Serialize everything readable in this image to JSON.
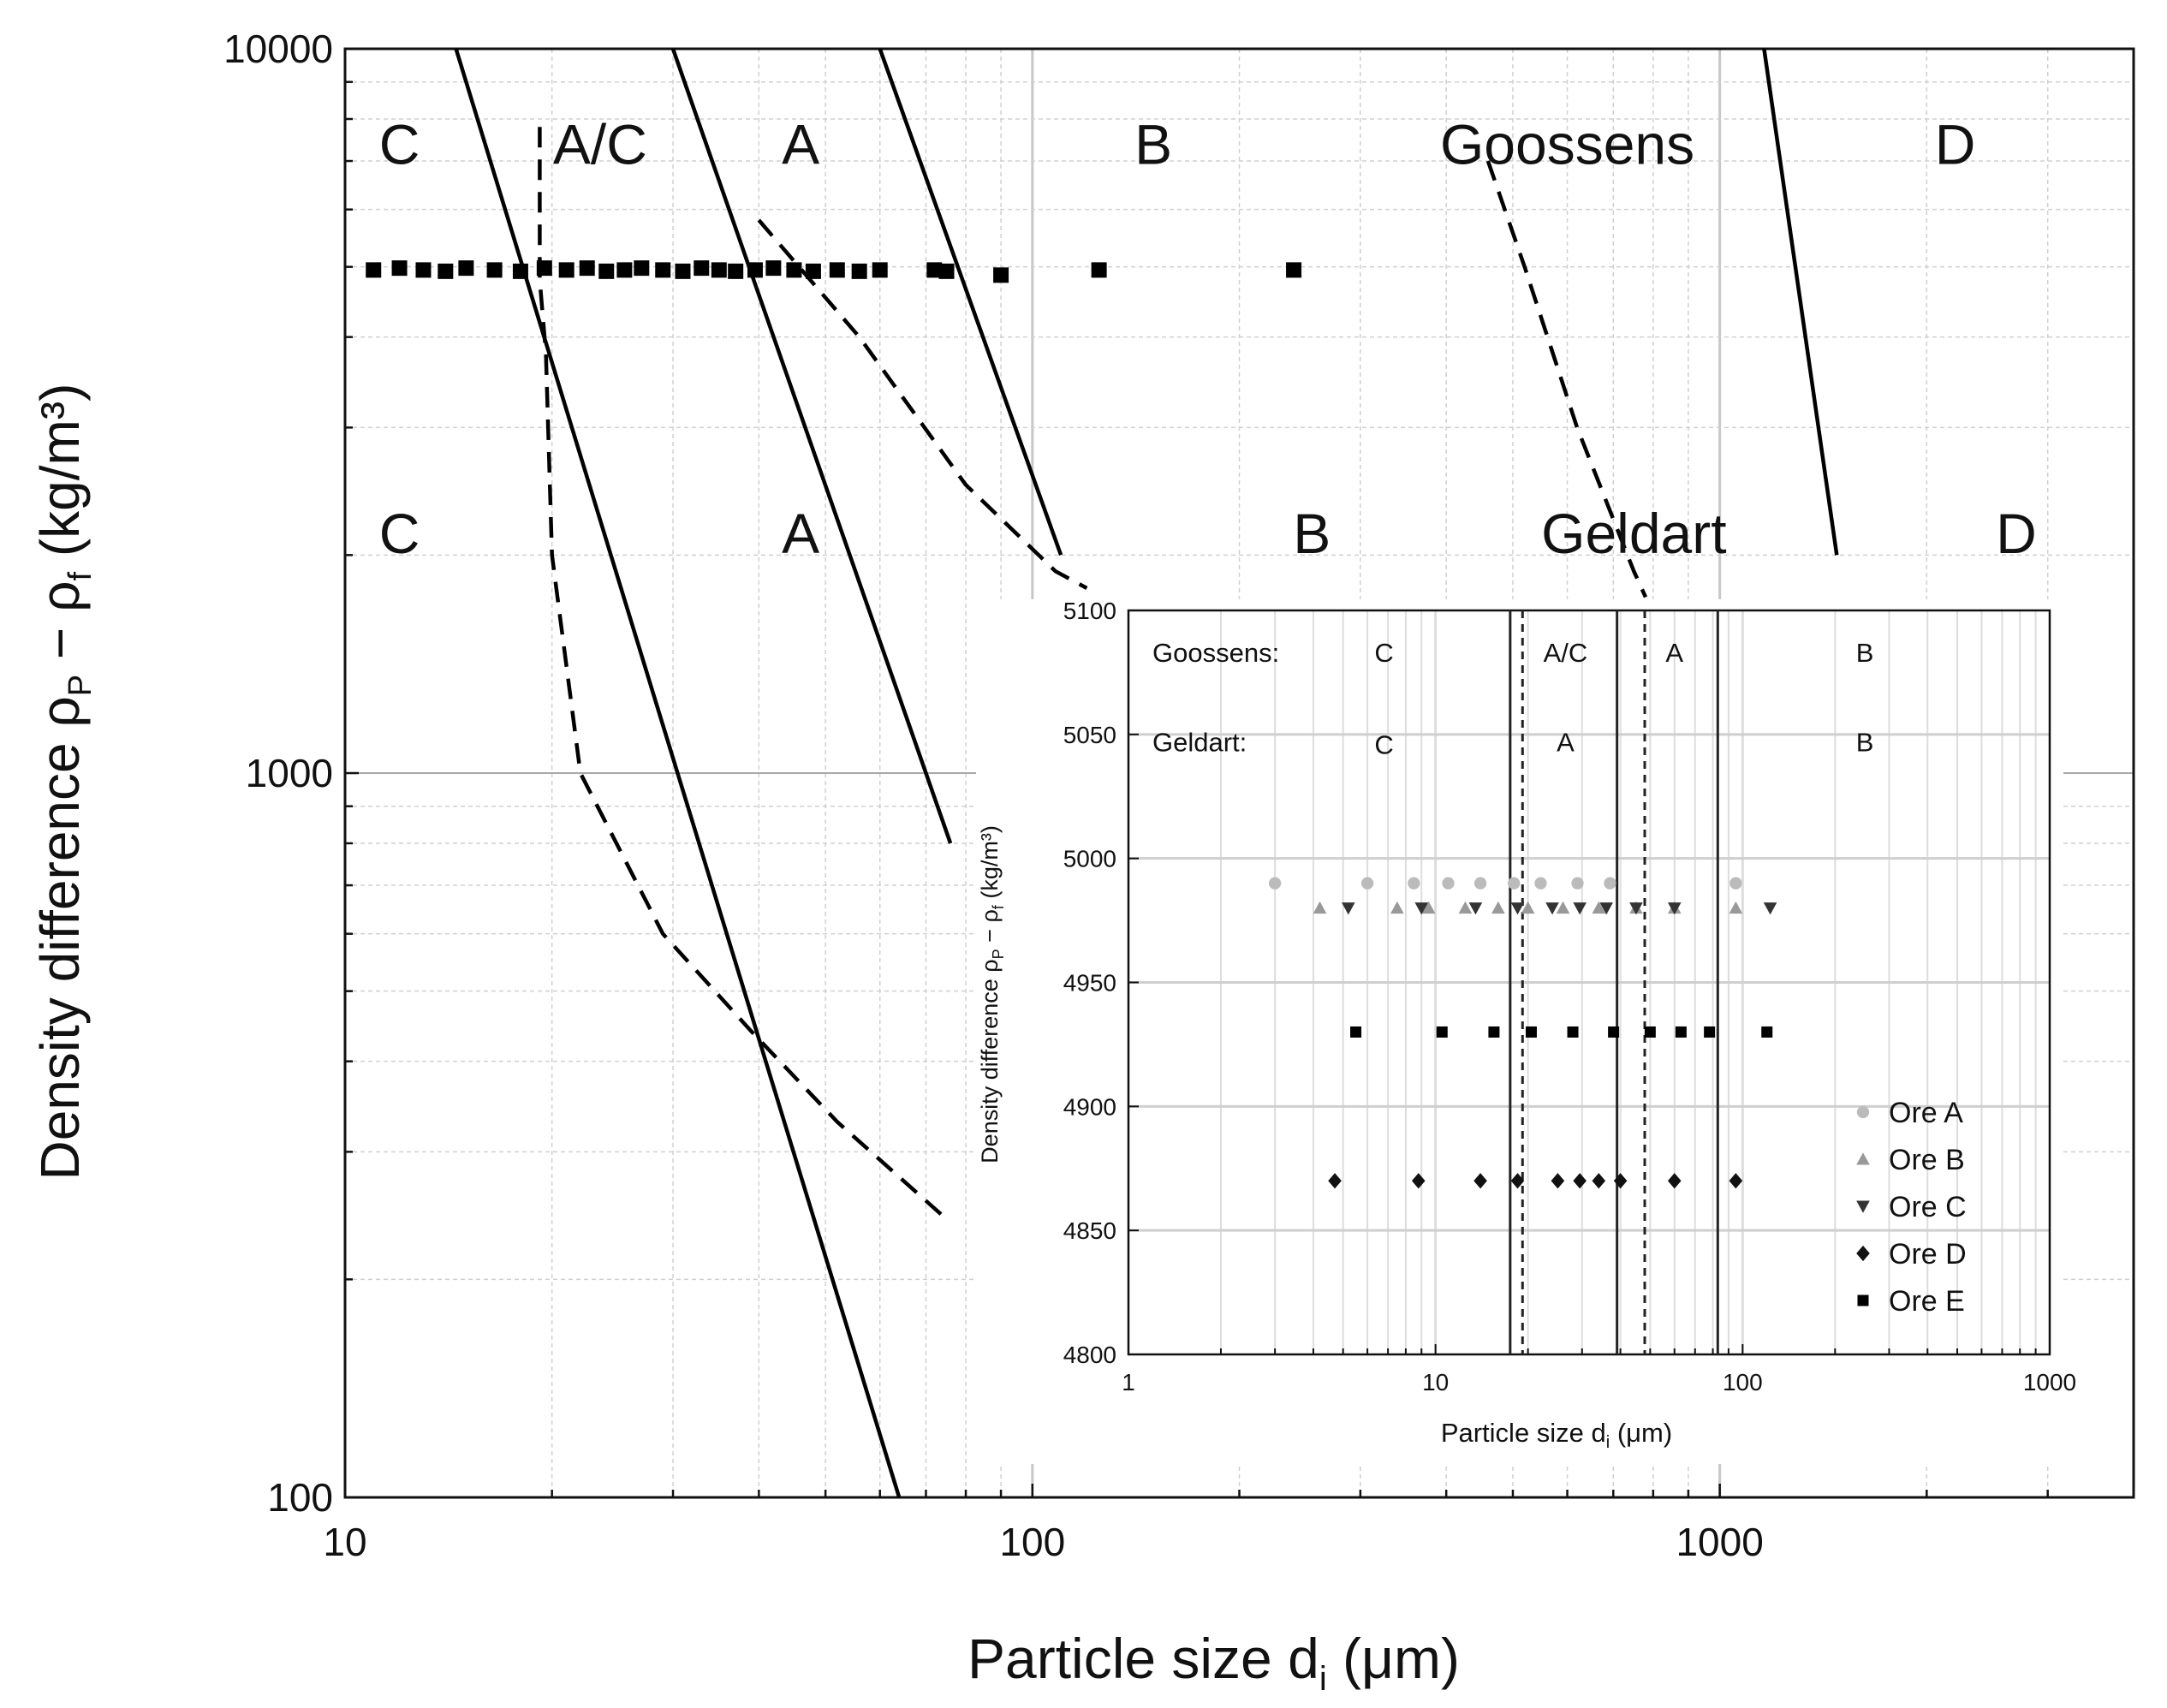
{
  "chart_data": [
    {
      "id": "main",
      "type": "scatter",
      "xscale": "log",
      "yscale": "log",
      "xlim": [
        10,
        4000
      ],
      "ylim": [
        100,
        10000
      ],
      "xlabel_main": "Particle size d",
      "xlabel_sub": "i",
      "xlabel_unit": " (μm)",
      "ylabel_main": "Density difference ρ",
      "ylabel_sub1": "P",
      "ylabel_mid": " − ρ",
      "ylabel_sub2": "f",
      "ylabel_unit": " (kg/m³)",
      "x_ticks": [
        {
          "value": 10,
          "label": "10"
        },
        {
          "value": 100,
          "label": "100"
        },
        {
          "value": 1000,
          "label": "1000"
        }
      ],
      "y_ticks": [
        {
          "value": 100,
          "label": "100"
        },
        {
          "value": 1000,
          "label": "1000"
        },
        {
          "value": 10000,
          "label": "10000"
        }
      ],
      "goossens_boundaries": [
        {
          "name": "C–A/C",
          "points": [
            [
              14.5,
              10000
            ],
            [
              64,
              100
            ]
          ],
          "style": "solid"
        },
        {
          "name": "A/C–A",
          "points": [
            [
              30,
              10000
            ],
            [
              76,
              800
            ]
          ],
          "style": "solid"
        },
        {
          "name": "A–B",
          "points": [
            [
              60,
              10000
            ],
            [
              110,
              2000
            ]
          ],
          "style": "solid"
        },
        {
          "name": "B–D",
          "points": [
            [
              1160,
              10000
            ],
            [
              1480,
              2000
            ]
          ],
          "style": "solid"
        }
      ],
      "geldart_boundaries": [
        {
          "name": "C–A",
          "points": [
            [
              19.2,
              7800
            ],
            [
              19.2,
              4800
            ],
            [
              19.6,
              3800
            ],
            [
              20,
              2000
            ],
            [
              22,
              1000
            ],
            [
              29,
              600
            ],
            [
              39,
              440
            ],
            [
              52,
              330
            ],
            [
              74,
              245
            ]
          ],
          "style": "dashed"
        },
        {
          "name": "A–B",
          "points": [
            [
              40,
              5800
            ],
            [
              56,
              4000
            ],
            [
              80,
              2500
            ],
            [
              108,
              1900
            ],
            [
              120,
              1800
            ]
          ],
          "style": "dashed"
        },
        {
          "name": "B–D",
          "points": [
            [
              460,
              7000
            ],
            [
              520,
              5000
            ],
            [
              620,
              3000
            ],
            [
              750,
              1900
            ],
            [
              780,
              1750
            ]
          ],
          "style": "dashed"
        }
      ],
      "points_overlay": [
        {
          "x": 11,
          "y": 4950
        },
        {
          "x": 12,
          "y": 4980
        },
        {
          "x": 13,
          "y": 4950
        },
        {
          "x": 14,
          "y": 4930
        },
        {
          "x": 15,
          "y": 4980
        },
        {
          "x": 16.5,
          "y": 4950
        },
        {
          "x": 18,
          "y": 4930
        },
        {
          "x": 19.5,
          "y": 4980
        },
        {
          "x": 21,
          "y": 4950
        },
        {
          "x": 22.5,
          "y": 4980
        },
        {
          "x": 24,
          "y": 4930
        },
        {
          "x": 25.5,
          "y": 4950
        },
        {
          "x": 27,
          "y": 4980
        },
        {
          "x": 29,
          "y": 4950
        },
        {
          "x": 31,
          "y": 4930
        },
        {
          "x": 33,
          "y": 4980
        },
        {
          "x": 35,
          "y": 4950
        },
        {
          "x": 37,
          "y": 4930
        },
        {
          "x": 39.5,
          "y": 4950
        },
        {
          "x": 42,
          "y": 4980
        },
        {
          "x": 45,
          "y": 4950
        },
        {
          "x": 48,
          "y": 4930
        },
        {
          "x": 52,
          "y": 4950
        },
        {
          "x": 56,
          "y": 4930
        },
        {
          "x": 60,
          "y": 4950
        },
        {
          "x": 72,
          "y": 4950
        },
        {
          "x": 75,
          "y": 4930
        },
        {
          "x": 90,
          "y": 4870
        },
        {
          "x": 125,
          "y": 4950
        },
        {
          "x": 240,
          "y": 4950
        }
      ],
      "goossens_labels": [
        {
          "text": "C",
          "x": 12,
          "y": 7400
        },
        {
          "text": "A/C",
          "x": 23.5,
          "y": 7400
        },
        {
          "text": "A",
          "x": 46,
          "y": 7400
        },
        {
          "text": "B",
          "x": 150,
          "y": 7400
        },
        {
          "text": "Goossens",
          "x": 600,
          "y": 7400
        },
        {
          "text": "D",
          "x": 2200,
          "y": 7400
        }
      ],
      "geldart_labels": [
        {
          "text": "C",
          "x": 12,
          "y": 2150
        },
        {
          "text": "A",
          "x": 46,
          "y": 2150
        },
        {
          "text": "B",
          "x": 255,
          "y": 2150
        },
        {
          "text": "Geldart",
          "x": 750,
          "y": 2150
        },
        {
          "text": "D",
          "x": 2700,
          "y": 2150
        }
      ]
    },
    {
      "id": "inset",
      "type": "scatter",
      "xscale": "log",
      "xlim": [
        1,
        1000
      ],
      "ylim": [
        4800,
        5100
      ],
      "xlabel_main": "Particle size d",
      "xlabel_sub": "i",
      "xlabel_unit": " (μm)",
      "ylabel_main": "Density difference ρ",
      "ylabel_sub1": "P",
      "ylabel_mid": " − ρ",
      "ylabel_sub2": "f",
      "ylabel_unit": " (kg/m³)",
      "x_ticks": [
        {
          "value": 1,
          "label": "1"
        },
        {
          "value": 10,
          "label": "10"
        },
        {
          "value": 100,
          "label": "100"
        },
        {
          "value": 1000,
          "label": "1000"
        }
      ],
      "y_ticks": [
        {
          "value": 4800,
          "label": "4800"
        },
        {
          "value": 4850,
          "label": "4850"
        },
        {
          "value": 4900,
          "label": "4900"
        },
        {
          "value": 4950,
          "label": "4950"
        },
        {
          "value": 5000,
          "label": "5000"
        },
        {
          "value": 5050,
          "label": "5050"
        },
        {
          "value": 5100,
          "label": "5100"
        }
      ],
      "boundaries": [
        {
          "x": 17.5,
          "style": "solid"
        },
        {
          "x": 19.2,
          "style": "dashed"
        },
        {
          "x": 39,
          "style": "solid"
        },
        {
          "x": 48,
          "style": "dashed"
        },
        {
          "x": 83,
          "style": "solid"
        }
      ],
      "row_labels": [
        {
          "text": "Goossens:",
          "y": 5083
        },
        {
          "text": "Geldart:",
          "y": 5047
        }
      ],
      "region_labels": [
        {
          "text": "C",
          "x": 6.8,
          "y": 5083
        },
        {
          "text": "A/C",
          "x": 26.5,
          "y": 5083
        },
        {
          "text": "A",
          "x": 60,
          "y": 5083
        },
        {
          "text": "B",
          "x": 250,
          "y": 5083
        },
        {
          "text": "C",
          "x": 6.8,
          "y": 5046
        },
        {
          "text": "A",
          "x": 26.5,
          "y": 5047
        },
        {
          "text": "B",
          "x": 250,
          "y": 5047
        }
      ],
      "legend_position": "bottom-right",
      "series": [
        {
          "name": "Ore A",
          "marker": "circle",
          "color": "#bbbbbb",
          "y": 4990,
          "x": [
            3,
            6,
            8.5,
            11,
            14,
            18,
            22,
            29,
            37,
            95
          ]
        },
        {
          "name": "Ore B",
          "marker": "triangle-up",
          "color": "#999999",
          "y": 4980,
          "x": [
            4.2,
            7.5,
            9.5,
            12.5,
            16,
            20,
            26,
            34,
            45,
            60,
            95
          ]
        },
        {
          "name": "Ore C",
          "marker": "triangle-down",
          "color": "#333333",
          "y": 4980,
          "x": [
            5.2,
            9,
            13.5,
            18.5,
            24,
            29.5,
            36,
            45,
            60,
            123
          ]
        },
        {
          "name": "Ore D",
          "marker": "diamond",
          "color": "#111111",
          "y": 4870,
          "x": [
            4.7,
            8.8,
            14,
            18.5,
            25,
            29.5,
            34,
            40,
            60,
            95
          ]
        },
        {
          "name": "Ore E",
          "marker": "square",
          "color": "#000000",
          "y": 4930,
          "x": [
            5.5,
            10.5,
            15.5,
            20.5,
            28,
            38,
            50,
            63,
            78,
            120
          ]
        }
      ]
    }
  ]
}
